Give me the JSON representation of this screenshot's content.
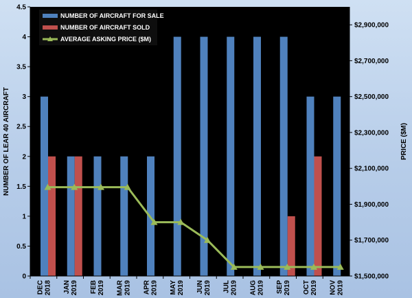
{
  "chart_data": {
    "type": "bar",
    "categories": [
      [
        "DEC",
        "2018"
      ],
      [
        "JAN",
        "2019"
      ],
      [
        "FEB",
        "2019"
      ],
      [
        "MAR",
        "2019"
      ],
      [
        "APR",
        "2019"
      ],
      [
        "MAY",
        "2019"
      ],
      [
        "JUN",
        "2019"
      ],
      [
        "JUL",
        "2019"
      ],
      [
        "AUG",
        "2019"
      ],
      [
        "SEP",
        "2019"
      ],
      [
        "OCT",
        "2019"
      ],
      [
        "NOV",
        "2019"
      ]
    ],
    "series": [
      {
        "name": "NUMBER OF AIRCRAFT FOR SALE",
        "type": "bar",
        "axis": "left",
        "color": "#4f81bd",
        "values": [
          3,
          2,
          2,
          2,
          2,
          4,
          4,
          4,
          4,
          4,
          3,
          3
        ]
      },
      {
        "name": "NUMBER OF AIRCRAFT SOLD",
        "type": "bar",
        "axis": "left",
        "color": "#c0504d",
        "values": [
          2,
          2,
          null,
          null,
          null,
          null,
          null,
          null,
          null,
          1,
          2,
          null
        ]
      },
      {
        "name": "AVERAGE ASKING PRICE ($M)",
        "type": "line",
        "axis": "right",
        "color": "#9bbb59",
        "values": [
          1995000,
          1995000,
          1995000,
          1995000,
          1800000,
          1800000,
          1700000,
          1550000,
          1550000,
          1550000,
          1550000,
          1550000
        ]
      }
    ],
    "ylabel": "NUMBER OF LEAR 40 AIRCRAFT",
    "y2label": "PRICE ($M)",
    "ylim": [
      0,
      4.5
    ],
    "ystep": 0.5,
    "y_ticks": [
      "0",
      "0.5",
      "1",
      "1.5",
      "2",
      "2.5",
      "3",
      "3.5",
      "4",
      "4.5"
    ],
    "y2lim": [
      1500000,
      3000000
    ],
    "y2_ticks": [
      "$1,500,000",
      "$1,700,000",
      "$1,900,000",
      "$2,100,000",
      "$2,300,000",
      "$2,500,000",
      "$2,700,000",
      "$2,900,000"
    ],
    "y2_tick_values": [
      1500000,
      1700000,
      1900000,
      2100000,
      2300000,
      2500000,
      2700000,
      2900000
    ],
    "legend_position": "top-left",
    "plot_background": "#000000"
  }
}
